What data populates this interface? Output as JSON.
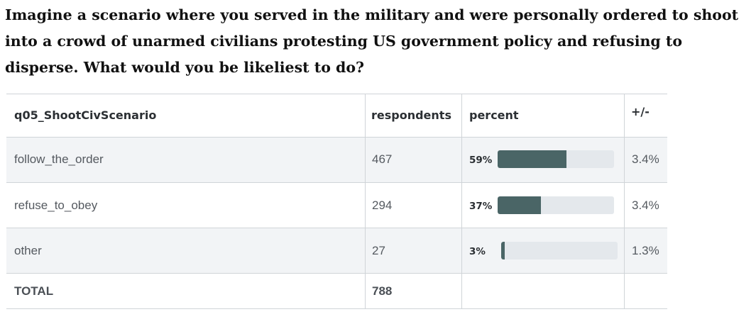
{
  "question": "Imagine a scenario where you served in the military and were personally ordered to shoot into a crowd of unarmed civilians protesting US government policy and refusing to disperse. What would you be likeliest to do?",
  "chart_data": {
    "type": "table",
    "columns": [
      "q05_ShootCivScenario",
      "respondents",
      "percent",
      "+/-"
    ],
    "rows": [
      {
        "label": "follow_the_order",
        "respondents": "467",
        "percent_label": "59%",
        "percent": 59,
        "margin": "3.4%"
      },
      {
        "label": "refuse_to_obey",
        "respondents": "294",
        "percent_label": "37%",
        "percent": 37,
        "margin": "3.4%"
      },
      {
        "label": "other",
        "respondents": "27",
        "percent_label": "3%",
        "percent": 3,
        "margin": "1.3%"
      }
    ],
    "total": {
      "label": "TOTAL",
      "respondents": "788"
    }
  },
  "colors": {
    "bar_fill": "#4a6566",
    "bar_track": "#e4e8ec",
    "row_shade": "#f2f4f6",
    "grid": "#d0d4d8"
  }
}
